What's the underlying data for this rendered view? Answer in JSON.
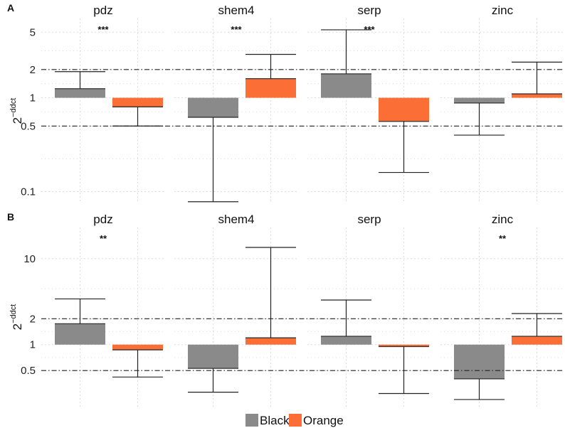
{
  "chart_data": [
    {
      "panel_label": "A",
      "type": "bar",
      "ylabel": "2",
      "ylabel_sup": "−ddct",
      "yscale": "log",
      "ylim": [
        0.075,
        7.0
      ],
      "yticks": [
        0.1,
        0.5,
        1,
        2,
        5
      ],
      "ytick_labels": [
        "0.1",
        "0.5",
        "1",
        "2",
        "5"
      ],
      "reference_lines": [
        0.5,
        2
      ],
      "baseline": 1,
      "facets": [
        {
          "name": "pdz",
          "significance": "***",
          "series": [
            {
              "name": "Black",
              "value": 1.25,
              "error": 1.9
            },
            {
              "name": "Orange",
              "value": 0.8,
              "error": 0.5
            }
          ]
        },
        {
          "name": "shem4",
          "significance": "***",
          "series": [
            {
              "name": "Black",
              "value": 0.62,
              "error": 0.078
            },
            {
              "name": "Orange",
              "value": 1.6,
              "error": 2.9
            }
          ]
        },
        {
          "name": "serp",
          "significance": "***",
          "series": [
            {
              "name": "Black",
              "value": 1.8,
              "error": 5.3
            },
            {
              "name": "Orange",
              "value": 0.56,
              "error": 0.16
            }
          ]
        },
        {
          "name": "zinc",
          "significance": "",
          "series": [
            {
              "name": "Black",
              "value": 0.88,
              "error": 0.4
            },
            {
              "name": "Orange",
              "value": 1.1,
              "error": 2.4
            }
          ]
        }
      ]
    },
    {
      "panel_label": "B",
      "type": "bar",
      "ylabel": "2",
      "ylabel_sup": "−ddct",
      "yscale": "log",
      "ylim": [
        0.19,
        23
      ],
      "yticks": [
        0.5,
        1,
        2,
        10
      ],
      "ytick_labels": [
        "0.5",
        "1",
        "2",
        "10"
      ],
      "reference_lines": [
        0.5,
        2
      ],
      "baseline": 1,
      "facets": [
        {
          "name": "pdz",
          "significance": "**",
          "series": [
            {
              "name": "Black",
              "value": 1.75,
              "error": 3.4
            },
            {
              "name": "Orange",
              "value": 0.87,
              "error": 0.42
            }
          ]
        },
        {
          "name": "shem4",
          "significance": "",
          "series": [
            {
              "name": "Black",
              "value": 0.53,
              "error": 0.28
            },
            {
              "name": "Orange",
              "value": 1.2,
              "error": 13.5
            }
          ]
        },
        {
          "name": "serp",
          "significance": "",
          "series": [
            {
              "name": "Black",
              "value": 1.25,
              "error": 3.3
            },
            {
              "name": "Orange",
              "value": 0.95,
              "error": 0.27
            }
          ]
        },
        {
          "name": "zinc",
          "significance": "**",
          "series": [
            {
              "name": "Black",
              "value": 0.4,
              "error": 0.23
            },
            {
              "name": "Orange",
              "value": 1.25,
              "error": 2.3
            }
          ]
        }
      ]
    }
  ],
  "legend": {
    "placement": "bottom",
    "items": [
      {
        "label": "Black",
        "color": "#8a8a8a"
      },
      {
        "label": "Orange",
        "color": "#fb6e35"
      }
    ]
  },
  "colors": {
    "Black": "#8a8a8a",
    "Orange": "#fb6e35",
    "grid": "#dcdcdc",
    "reference_line": "#222222"
  }
}
